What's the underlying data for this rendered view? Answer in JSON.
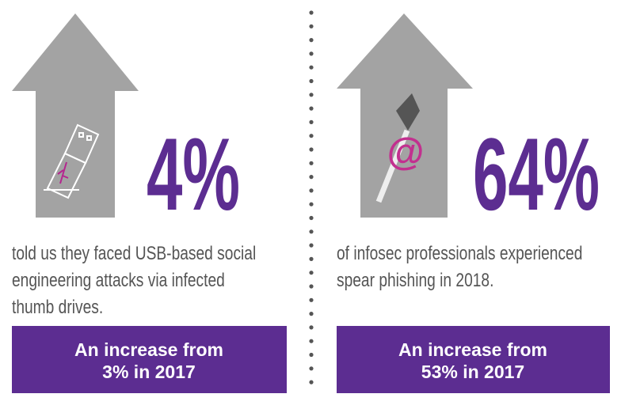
{
  "left": {
    "stat": "4%",
    "description_lines": [
      "told us they faced USB-based social",
      "engineering attacks via infected",
      "thumb drives."
    ],
    "callout_lines": [
      "An increase from",
      "3% in 2017"
    ]
  },
  "right": {
    "stat": "64%",
    "description_lines": [
      "of infosec professionals experienced",
      "spear phishing in 2018."
    ],
    "callout_lines": [
      "An increase from",
      "53% in 2017"
    ]
  }
}
